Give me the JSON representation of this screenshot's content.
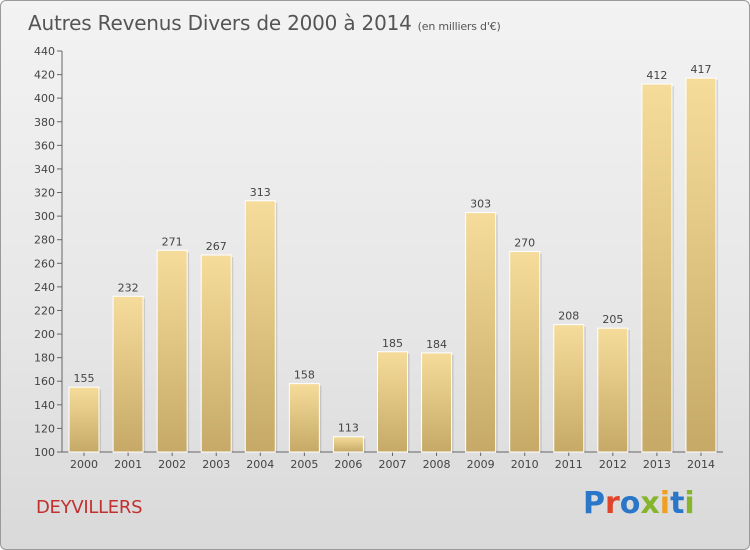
{
  "header": {
    "title": "Autres Revenus Divers de 2000 à 2014",
    "unit": "(en milliers d'€)"
  },
  "footer": {
    "commune": "DEYVILLERS",
    "brand": "Proxiti"
  },
  "colors": {
    "bar_light": "#f6dc9b",
    "bar_dark": "#c6a966",
    "commune": "#c0312f",
    "brand_letters": [
      "#2a77c9",
      "#e0442a",
      "#2a77c9",
      "#86b52d",
      "#f0a020",
      "#2a77c9",
      "#86b52d"
    ]
  },
  "chart_data": {
    "type": "bar",
    "categories": [
      "2000",
      "2001",
      "2002",
      "2003",
      "2004",
      "2005",
      "2006",
      "2007",
      "2008",
      "2009",
      "2010",
      "2011",
      "2012",
      "2013",
      "2014"
    ],
    "values": [
      155,
      232,
      271,
      267,
      313,
      158,
      113,
      185,
      184,
      303,
      270,
      208,
      205,
      412,
      417
    ],
    "ylim": [
      100,
      440
    ],
    "yticks": [
      100,
      120,
      140,
      160,
      180,
      200,
      220,
      240,
      260,
      280,
      300,
      320,
      340,
      360,
      380,
      400,
      420,
      440
    ],
    "grid": false,
    "legend": "none"
  }
}
